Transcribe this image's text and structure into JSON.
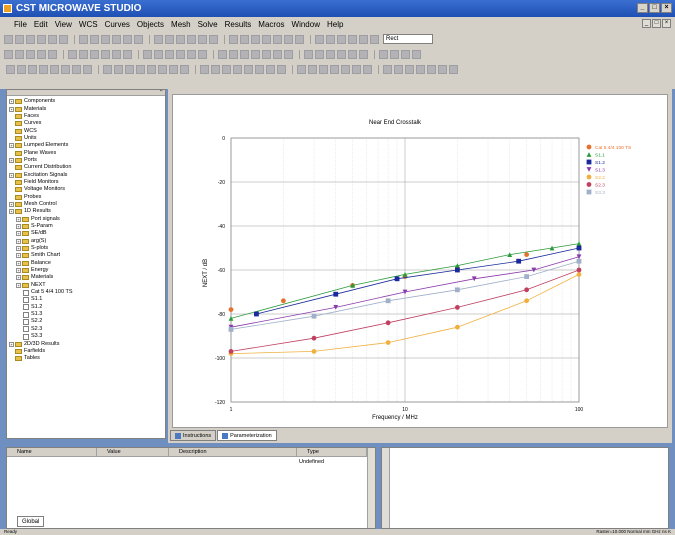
{
  "window": {
    "title": "CST MICROWAVE STUDIO"
  },
  "menu": [
    "File",
    "Edit",
    "View",
    "WCS",
    "Curves",
    "Objects",
    "Mesh",
    "Solve",
    "Results",
    "Macros",
    "Window",
    "Help"
  ],
  "toolbar": {
    "combo_value": "Rect"
  },
  "tree": [
    {
      "label": "Components",
      "exp": true,
      "depth": 0
    },
    {
      "label": "Materials",
      "exp": true,
      "depth": 0
    },
    {
      "label": "Faces",
      "exp": false,
      "depth": 0
    },
    {
      "label": "Curves",
      "exp": false,
      "depth": 0
    },
    {
      "label": "WCS",
      "exp": false,
      "depth": 0
    },
    {
      "label": "Units",
      "exp": false,
      "depth": 0
    },
    {
      "label": "Lumped Elements",
      "exp": true,
      "depth": 0
    },
    {
      "label": "Plane Waves",
      "exp": false,
      "depth": 0
    },
    {
      "label": "Ports",
      "exp": true,
      "depth": 0
    },
    {
      "label": "Current Distribution",
      "exp": false,
      "depth": 0
    },
    {
      "label": "Excitation Signals",
      "exp": true,
      "depth": 0
    },
    {
      "label": "Field Monitors",
      "exp": false,
      "depth": 0
    },
    {
      "label": "Voltage Monitors",
      "exp": false,
      "depth": 0
    },
    {
      "label": "Probes",
      "exp": false,
      "depth": 0
    },
    {
      "label": "Mesh Control",
      "exp": true,
      "depth": 0
    },
    {
      "label": "1D Results",
      "exp": true,
      "depth": 0
    },
    {
      "label": "Port signals",
      "exp": true,
      "depth": 1
    },
    {
      "label": "S-Param",
      "exp": true,
      "depth": 1
    },
    {
      "label": "SE/dB",
      "exp": true,
      "depth": 1
    },
    {
      "label": "arg(S)",
      "exp": true,
      "depth": 1
    },
    {
      "label": "S-plots",
      "exp": true,
      "depth": 1
    },
    {
      "label": "Smith Chart",
      "exp": true,
      "depth": 1
    },
    {
      "label": "Balance",
      "exp": true,
      "depth": 1
    },
    {
      "label": "Energy",
      "exp": true,
      "depth": 1
    },
    {
      "label": "Materials",
      "exp": true,
      "depth": 1
    },
    {
      "label": "NEXT",
      "exp": true,
      "depth": 1
    },
    {
      "label": "Cat 5 4/4 100 TS",
      "leaf": true,
      "depth": 2
    },
    {
      "label": "S1.1",
      "leaf": true,
      "depth": 2
    },
    {
      "label": "S1.2",
      "leaf": true,
      "depth": 2
    },
    {
      "label": "S1.3",
      "leaf": true,
      "depth": 2
    },
    {
      "label": "S2.2",
      "leaf": true,
      "depth": 2
    },
    {
      "label": "S2.3",
      "leaf": true,
      "depth": 2
    },
    {
      "label": "S3.3",
      "leaf": true,
      "depth": 2
    },
    {
      "label": "2D/3D Results",
      "exp": true,
      "depth": 0
    },
    {
      "label": "Farfields",
      "exp": false,
      "depth": 0
    },
    {
      "label": "Tables",
      "exp": false,
      "depth": 0
    }
  ],
  "view_tabs": [
    "Instructions",
    "Parameterization"
  ],
  "parameter_list": {
    "columns": [
      "Name",
      "Value",
      "Description",
      "Type"
    ],
    "type_value": "Undefined",
    "tab_label": "Global"
  },
  "chart_data": {
    "type": "scatter",
    "title": "Near End Crosstalk",
    "xlabel": "Frequency / MHz",
    "ylabel": "NEXT / dB",
    "xscale": "log",
    "xlim": [
      1,
      100
    ],
    "ylim": [
      -120,
      0
    ],
    "xticks": [
      "1",
      "10",
      "100"
    ],
    "yticks": [
      "0",
      "-20",
      "-40",
      "-60",
      "-80",
      "-100",
      "-120"
    ],
    "grid": true,
    "legend_position": "top-right",
    "series": [
      {
        "name": "Cat 5 4/4 100 TS",
        "color": "#e8702a",
        "marker": "circle",
        "line": false,
        "points": [
          [
            1,
            -78
          ],
          [
            2,
            -74
          ],
          [
            5,
            -67
          ],
          [
            10,
            -63
          ],
          [
            20,
            -59
          ],
          [
            50,
            -53
          ],
          [
            100,
            -50
          ]
        ]
      },
      {
        "name": "S1.1",
        "color": "#2a9a3a",
        "marker": "triangle",
        "line": true,
        "points": [
          [
            1,
            -82
          ],
          [
            5,
            -67
          ],
          [
            10,
            -62
          ],
          [
            20,
            -58
          ],
          [
            40,
            -53
          ],
          [
            70,
            -50
          ],
          [
            100,
            -48
          ]
        ]
      },
      {
        "name": "S1.2",
        "color": "#1a2a9a",
        "marker": "square",
        "line": true,
        "points": [
          [
            1.4,
            -80
          ],
          [
            4,
            -71
          ],
          [
            9,
            -64
          ],
          [
            20,
            -60
          ],
          [
            45,
            -56
          ],
          [
            100,
            -50
          ]
        ]
      },
      {
        "name": "S1.3",
        "color": "#8a3aaa",
        "marker": "triangle-down",
        "line": true,
        "points": [
          [
            1,
            -86
          ],
          [
            4,
            -77
          ],
          [
            10,
            -70
          ],
          [
            25,
            -64
          ],
          [
            55,
            -60
          ],
          [
            100,
            -54
          ]
        ]
      },
      {
        "name": "S2.2",
        "color": "#f0b040",
        "marker": "circle",
        "line": true,
        "points": [
          [
            1,
            -98
          ],
          [
            3,
            -97
          ],
          [
            8,
            -93
          ],
          [
            20,
            -86
          ],
          [
            50,
            -74
          ],
          [
            100,
            -62
          ]
        ]
      },
      {
        "name": "S2.3",
        "color": "#c04060",
        "marker": "circle",
        "line": true,
        "points": [
          [
            1,
            -97
          ],
          [
            3,
            -91
          ],
          [
            8,
            -84
          ],
          [
            20,
            -77
          ],
          [
            50,
            -69
          ],
          [
            100,
            -60
          ]
        ]
      },
      {
        "name": "S3.3",
        "color": "#a0b0c8",
        "marker": "square",
        "line": true,
        "points": [
          [
            1,
            -87
          ],
          [
            3,
            -81
          ],
          [
            8,
            -74
          ],
          [
            20,
            -69
          ],
          [
            50,
            -63
          ],
          [
            100,
            -56
          ]
        ]
      }
    ]
  },
  "status": {
    "left": "Ready",
    "right": "Raster=10.000 Normal mm GHz ns K"
  }
}
